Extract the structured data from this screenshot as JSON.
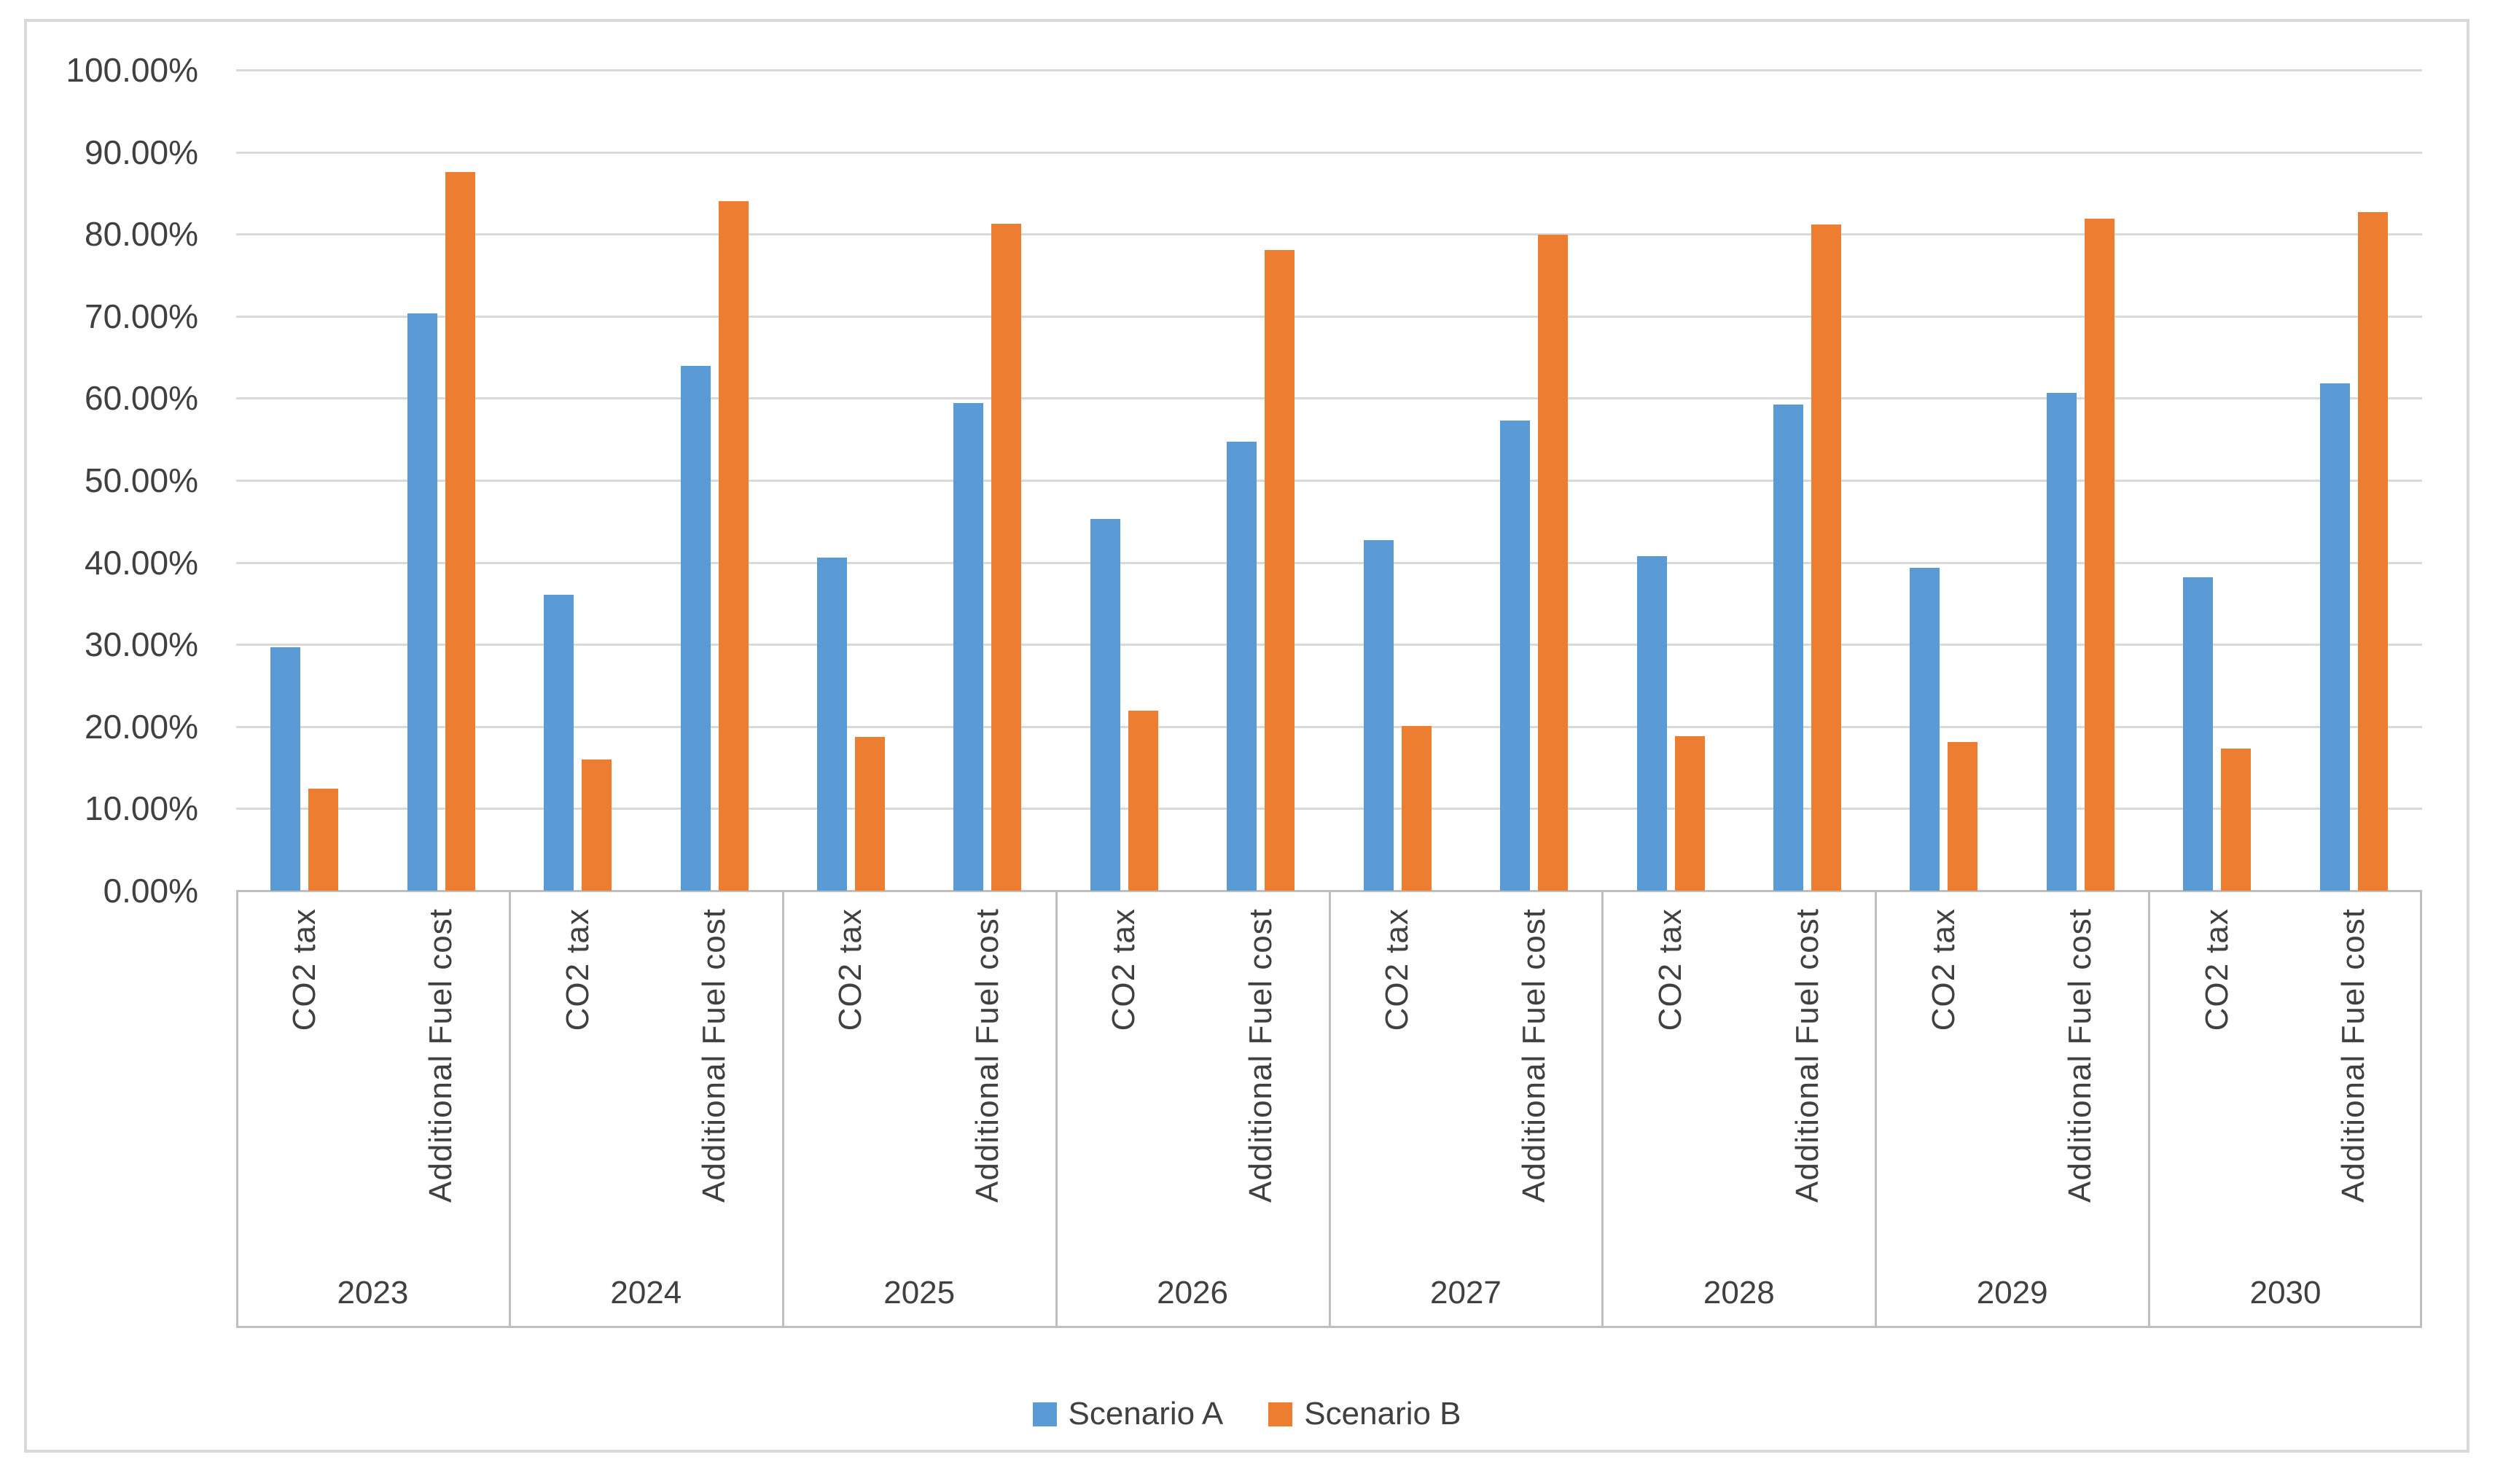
{
  "chart_data": {
    "type": "bar",
    "title": "",
    "xlabel": "",
    "ylabel": "",
    "grid": true,
    "legend_position": "bottom",
    "y_axis": {
      "min": 0,
      "max": 100,
      "step": 10,
      "ticks": [
        {
          "value": 100,
          "label": "100.00%"
        },
        {
          "value": 90,
          "label": "90.00%"
        },
        {
          "value": 80,
          "label": "80.00%"
        },
        {
          "value": 70,
          "label": "70.00%"
        },
        {
          "value": 60,
          "label": "60.00%"
        },
        {
          "value": 50,
          "label": "50.00%"
        },
        {
          "value": 40,
          "label": "40.00%"
        },
        {
          "value": 30,
          "label": "30.00%"
        },
        {
          "value": 20,
          "label": "20.00%"
        },
        {
          "value": 10,
          "label": "10.00%"
        },
        {
          "value": 0,
          "label": "0.00%"
        }
      ]
    },
    "series": [
      {
        "id": "scenario_a",
        "name": "Scenario A",
        "color": "#5B9BD5"
      },
      {
        "id": "scenario_b",
        "name": "Scenario B",
        "color": "#ED7D31"
      }
    ],
    "groups": [
      {
        "year": "2023",
        "items": [
          {
            "category": "CO2 tax",
            "scenario_a": 29.7,
            "scenario_b": 12.4
          },
          {
            "category": "Additional Fuel cost",
            "scenario_a": 70.3,
            "scenario_b": 87.6
          }
        ]
      },
      {
        "year": "2024",
        "items": [
          {
            "category": "CO2 tax",
            "scenario_a": 36.1,
            "scenario_b": 16.0
          },
          {
            "category": "Additional Fuel cost",
            "scenario_a": 63.9,
            "scenario_b": 84.0
          }
        ]
      },
      {
        "year": "2025",
        "items": [
          {
            "category": "CO2 tax",
            "scenario_a": 40.6,
            "scenario_b": 18.7
          },
          {
            "category": "Additional Fuel cost",
            "scenario_a": 59.4,
            "scenario_b": 81.3
          }
        ]
      },
      {
        "year": "2026",
        "items": [
          {
            "category": "CO2 tax",
            "scenario_a": 45.3,
            "scenario_b": 21.9
          },
          {
            "category": "Additional Fuel cost",
            "scenario_a": 54.7,
            "scenario_b": 78.1
          }
        ]
      },
      {
        "year": "2027",
        "items": [
          {
            "category": "CO2 tax",
            "scenario_a": 42.7,
            "scenario_b": 20.1
          },
          {
            "category": "Additional Fuel cost",
            "scenario_a": 57.3,
            "scenario_b": 79.9
          }
        ]
      },
      {
        "year": "2028",
        "items": [
          {
            "category": "CO2 tax",
            "scenario_a": 40.8,
            "scenario_b": 18.8
          },
          {
            "category": "Additional Fuel cost",
            "scenario_a": 59.2,
            "scenario_b": 81.2
          }
        ]
      },
      {
        "year": "2029",
        "items": [
          {
            "category": "CO2 tax",
            "scenario_a": 39.3,
            "scenario_b": 18.1
          },
          {
            "category": "Additional Fuel cost",
            "scenario_a": 60.7,
            "scenario_b": 81.9
          }
        ]
      },
      {
        "year": "2030",
        "items": [
          {
            "category": "CO2 tax",
            "scenario_a": 38.2,
            "scenario_b": 17.3
          },
          {
            "category": "Additional Fuel cost",
            "scenario_a": 61.8,
            "scenario_b": 82.7
          }
        ]
      }
    ]
  }
}
